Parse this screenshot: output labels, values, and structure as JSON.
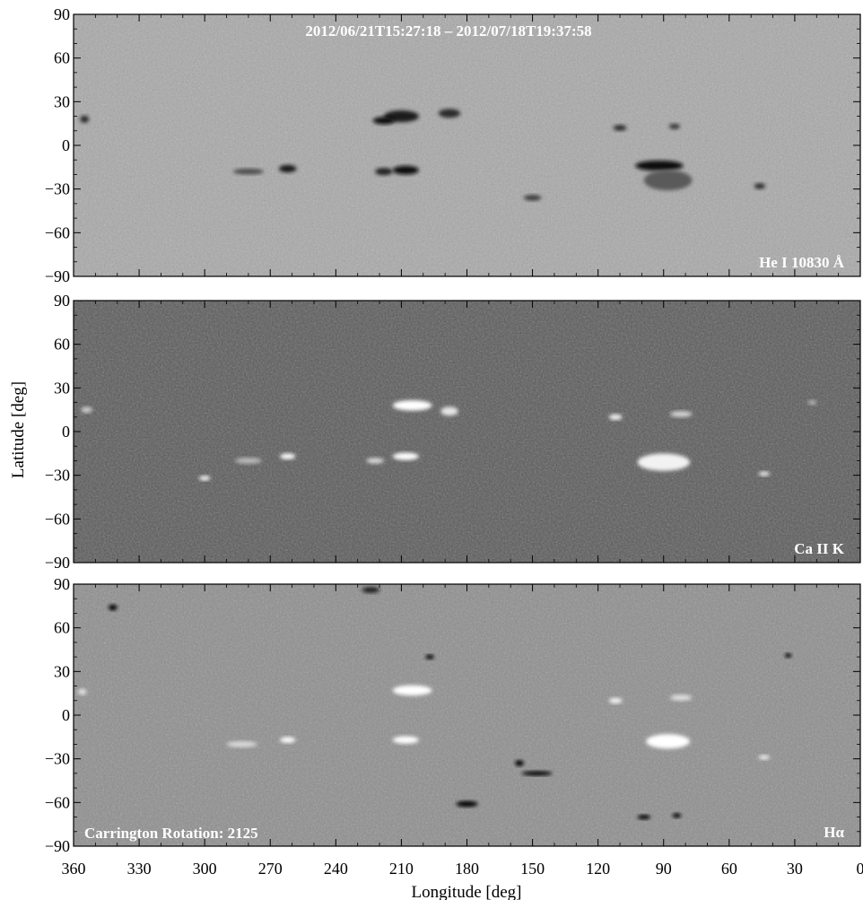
{
  "chart_data": {
    "type": "heatmap",
    "title": "2012/06/21T15:27:18 – 2012/07/18T19:37:58",
    "xlabel": "Longitude [deg]",
    "ylabel": "Latitude [deg]",
    "xlim": [
      360,
      0
    ],
    "ylim": [
      -90,
      90
    ],
    "x_ticks": [
      360,
      330,
      300,
      270,
      240,
      210,
      180,
      150,
      120,
      90,
      60,
      30,
      0
    ],
    "y_ticks": [
      90,
      60,
      30,
      0,
      -30,
      -60,
      -90
    ],
    "panels": [
      {
        "label": "He I 10830 Å",
        "background": "#a9a9a9",
        "features": [
          {
            "lon": 210,
            "lat": 20,
            "w": 16,
            "h": 8,
            "color": "#1a1a1a"
          },
          {
            "lon": 188,
            "lat": 22,
            "w": 10,
            "h": 6,
            "color": "#2a2a2a"
          },
          {
            "lon": 218,
            "lat": 17,
            "w": 10,
            "h": 5,
            "color": "#111111"
          },
          {
            "lon": 208,
            "lat": -17,
            "w": 12,
            "h": 6,
            "color": "#0d0d0d"
          },
          {
            "lon": 218,
            "lat": -18,
            "w": 8,
            "h": 5,
            "color": "#222222"
          },
          {
            "lon": 262,
            "lat": -16,
            "w": 8,
            "h": 5,
            "color": "#161616"
          },
          {
            "lon": 280,
            "lat": -18,
            "w": 14,
            "h": 4,
            "color": "#4a4a4a"
          },
          {
            "lon": 92,
            "lat": -14,
            "w": 22,
            "h": 7,
            "color": "#0a0a0a"
          },
          {
            "lon": 88,
            "lat": -24,
            "w": 22,
            "h": 14,
            "color": "#5a5a5a"
          },
          {
            "lon": 110,
            "lat": 12,
            "w": 6,
            "h": 4,
            "color": "#2a2a2a"
          },
          {
            "lon": 85,
            "lat": 13,
            "w": 5,
            "h": 4,
            "color": "#3a3a3a"
          },
          {
            "lon": 46,
            "lat": -28,
            "w": 5,
            "h": 4,
            "color": "#2a2a2a"
          },
          {
            "lon": 150,
            "lat": -36,
            "w": 8,
            "h": 4,
            "color": "#3a3a3a"
          },
          {
            "lon": 355,
            "lat": 18,
            "w": 4,
            "h": 5,
            "color": "#2a2a2a"
          }
        ]
      },
      {
        "label": "Ca II K",
        "background": "#5a5a5a",
        "features": [
          {
            "lon": 205,
            "lat": 18,
            "w": 18,
            "h": 7,
            "color": "#ffffff"
          },
          {
            "lon": 188,
            "lat": 14,
            "w": 8,
            "h": 6,
            "color": "#e6e6e6"
          },
          {
            "lon": 208,
            "lat": -17,
            "w": 12,
            "h": 5,
            "color": "#ffffff"
          },
          {
            "lon": 222,
            "lat": -20,
            "w": 8,
            "h": 4,
            "color": "#d8d8d8"
          },
          {
            "lon": 262,
            "lat": -17,
            "w": 7,
            "h": 4,
            "color": "#ffffff"
          },
          {
            "lon": 280,
            "lat": -20,
            "w": 12,
            "h": 4,
            "color": "#bdbdbd"
          },
          {
            "lon": 300,
            "lat": -32,
            "w": 5,
            "h": 3,
            "color": "#ffffff"
          },
          {
            "lon": 90,
            "lat": -21,
            "w": 24,
            "h": 12,
            "color": "#f2f2f2"
          },
          {
            "lon": 112,
            "lat": 10,
            "w": 6,
            "h": 4,
            "color": "#f2f2f2"
          },
          {
            "lon": 82,
            "lat": 12,
            "w": 10,
            "h": 4,
            "color": "#d6d6d6"
          },
          {
            "lon": 44,
            "lat": -29,
            "w": 5,
            "h": 3,
            "color": "#ececec"
          },
          {
            "lon": 354,
            "lat": 15,
            "w": 5,
            "h": 4,
            "color": "#d0d0d0"
          },
          {
            "lon": 22,
            "lat": 20,
            "w": 4,
            "h": 3,
            "color": "#b8b8b8"
          }
        ]
      },
      {
        "label": "Hα",
        "background": "#8e8e8e",
        "features": [
          {
            "lon": 205,
            "lat": 17,
            "w": 18,
            "h": 7,
            "color": "#ffffff"
          },
          {
            "lon": 208,
            "lat": -17,
            "w": 12,
            "h": 5,
            "color": "#ffffff"
          },
          {
            "lon": 262,
            "lat": -17,
            "w": 7,
            "h": 4,
            "color": "#ffffff"
          },
          {
            "lon": 283,
            "lat": -20,
            "w": 14,
            "h": 4,
            "color": "#dcdcdc"
          },
          {
            "lon": 88,
            "lat": -18,
            "w": 20,
            "h": 10,
            "color": "#ffffff"
          },
          {
            "lon": 112,
            "lat": 10,
            "w": 6,
            "h": 4,
            "color": "#f2f2f2"
          },
          {
            "lon": 82,
            "lat": 12,
            "w": 10,
            "h": 4,
            "color": "#e0e0e0"
          },
          {
            "lon": 44,
            "lat": -29,
            "w": 5,
            "h": 3,
            "color": "#f0f0f0"
          },
          {
            "lon": 356,
            "lat": 16,
            "w": 4,
            "h": 4,
            "color": "#e6e6e6"
          },
          {
            "lon": 180,
            "lat": -61,
            "w": 10,
            "h": 4,
            "color": "#000000"
          },
          {
            "lon": 148,
            "lat": -40,
            "w": 14,
            "h": 3,
            "color": "#000000"
          },
          {
            "lon": 156,
            "lat": -33,
            "w": 4,
            "h": 4,
            "color": "#000000"
          },
          {
            "lon": 99,
            "lat": -70,
            "w": 6,
            "h": 3,
            "color": "#000000"
          },
          {
            "lon": 84,
            "lat": -69,
            "w": 4,
            "h": 3,
            "color": "#000000"
          },
          {
            "lon": 342,
            "lat": 74,
            "w": 4,
            "h": 4,
            "color": "#000000"
          },
          {
            "lon": 197,
            "lat": 40,
            "w": 4,
            "h": 3,
            "color": "#000000"
          },
          {
            "lon": 224,
            "lat": 86,
            "w": 8,
            "h": 4,
            "color": "#1a1a1a"
          },
          {
            "lon": 33,
            "lat": 41,
            "w": 3,
            "h": 2,
            "color": "#000000"
          }
        ]
      }
    ]
  },
  "corner_note": "Carrington Rotation: 2125"
}
